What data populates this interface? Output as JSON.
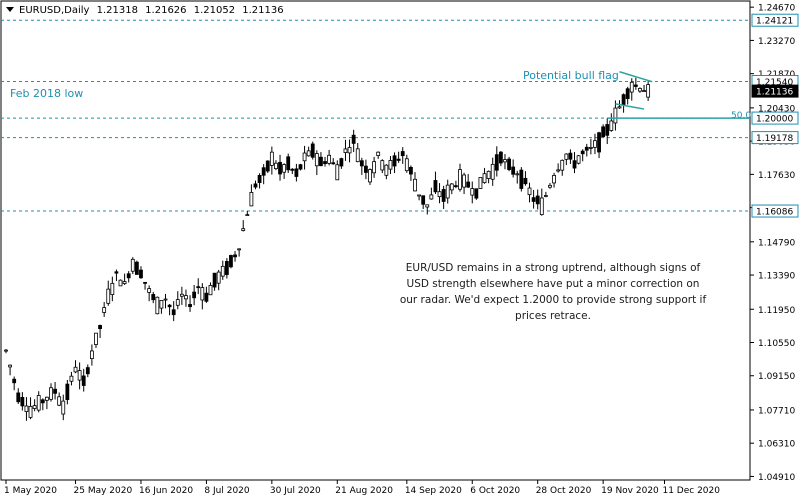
{
  "header": {
    "symbol": "EURUSD,Daily",
    "open": "1.21318",
    "high": "1.21626",
    "low": "1.21052",
    "close": "1.21136"
  },
  "annotations": {
    "feb_low": "Feb 2018 low",
    "bull_flag": "Potential bull flag",
    "fib_level": "50.0",
    "commentary": "EUR/USD remains in a strong uptrend, although signs of USD strength elsewhere have put a minor correction on our radar. We'd expect 1.2000 to provide strong support if prices retrace."
  },
  "colors": {
    "candle": "#000000",
    "level_line": "#1f8fb3",
    "flag_line": "#2aa5a0",
    "price_box": "#000000",
    "level_box_border": "#1f8fb3"
  },
  "chart_data": {
    "type": "candlestick",
    "y_ticks": [
      "1.24670",
      "1.23270",
      "1.21870",
      "1.20430",
      "1.19030",
      "1.17630",
      "1.16230",
      "1.14790",
      "1.13390",
      "1.11950",
      "1.10550",
      "1.09150",
      "1.07710",
      "1.06310",
      "1.04910"
    ],
    "x_ticks": [
      "1 May 2020",
      "25 May 2020",
      "16 Jun 2020",
      "8 Jul 2020",
      "30 Jul 2020",
      "21 Aug 2020",
      "14 Sep 2020",
      "6 Oct 2020",
      "28 Oct 2020",
      "19 Nov 2020",
      "11 Dec 2020"
    ],
    "ylim": [
      1.0476,
      1.2493
    ],
    "horizontal_levels": [
      {
        "value": 1.24121,
        "label": "1.24121"
      },
      {
        "value": 1.2154,
        "label": "1.21540"
      },
      {
        "value": 1.2,
        "label": "1.20000"
      },
      {
        "value": 1.19178,
        "label": "1.19178"
      },
      {
        "value": 1.16086,
        "label": "1.16086"
      }
    ],
    "current_price": {
      "value": 1.21136,
      "label": "1.21136"
    },
    "anchors": [
      [
        0,
        1.102
      ],
      [
        3,
        1.083
      ],
      [
        6,
        1.077
      ],
      [
        9,
        1.081
      ],
      [
        12,
        1.085
      ],
      [
        14,
        1.079
      ],
      [
        17,
        1.095
      ],
      [
        19,
        1.088
      ],
      [
        21,
        1.101
      ],
      [
        23,
        1.112
      ],
      [
        25,
        1.125
      ],
      [
        27,
        1.134
      ],
      [
        29,
        1.13
      ],
      [
        31,
        1.139
      ],
      [
        33,
        1.135
      ],
      [
        35,
        1.127
      ],
      [
        37,
        1.121
      ],
      [
        39,
        1.124
      ],
      [
        41,
        1.118
      ],
      [
        43,
        1.125
      ],
      [
        45,
        1.122
      ],
      [
        47,
        1.129
      ],
      [
        49,
        1.125
      ],
      [
        51,
        1.131
      ],
      [
        53,
        1.135
      ],
      [
        55,
        1.139
      ],
      [
        57,
        1.146
      ],
      [
        59,
        1.16
      ],
      [
        61,
        1.172
      ],
      [
        63,
        1.176
      ],
      [
        65,
        1.183
      ],
      [
        67,
        1.178
      ],
      [
        69,
        1.18
      ],
      [
        71,
        1.176
      ],
      [
        73,
        1.183
      ],
      [
        75,
        1.186
      ],
      [
        77,
        1.181
      ],
      [
        79,
        1.183
      ],
      [
        81,
        1.178
      ],
      [
        83,
        1.186
      ],
      [
        85,
        1.19
      ],
      [
        87,
        1.181
      ],
      [
        89,
        1.177
      ],
      [
        91,
        1.184
      ],
      [
        93,
        1.179
      ],
      [
        95,
        1.181
      ],
      [
        97,
        1.185
      ],
      [
        99,
        1.177
      ],
      [
        101,
        1.168
      ],
      [
        103,
        1.163
      ],
      [
        105,
        1.17
      ],
      [
        107,
        1.167
      ],
      [
        109,
        1.171
      ],
      [
        111,
        1.174
      ],
      [
        113,
        1.172
      ],
      [
        115,
        1.169
      ],
      [
        117,
        1.175
      ],
      [
        119,
        1.178
      ],
      [
        121,
        1.184
      ],
      [
        123,
        1.179
      ],
      [
        125,
        1.177
      ],
      [
        127,
        1.172
      ],
      [
        129,
        1.166
      ],
      [
        131,
        1.163
      ],
      [
        133,
        1.172
      ],
      [
        135,
        1.179
      ],
      [
        137,
        1.184
      ],
      [
        139,
        1.181
      ],
      [
        141,
        1.185
      ],
      [
        143,
        1.187
      ],
      [
        145,
        1.19
      ],
      [
        147,
        1.195
      ],
      [
        149,
        1.201
      ],
      [
        151,
        1.208
      ],
      [
        153,
        1.214
      ],
      [
        155,
        1.213
      ],
      [
        157,
        1.211
      ]
    ]
  }
}
